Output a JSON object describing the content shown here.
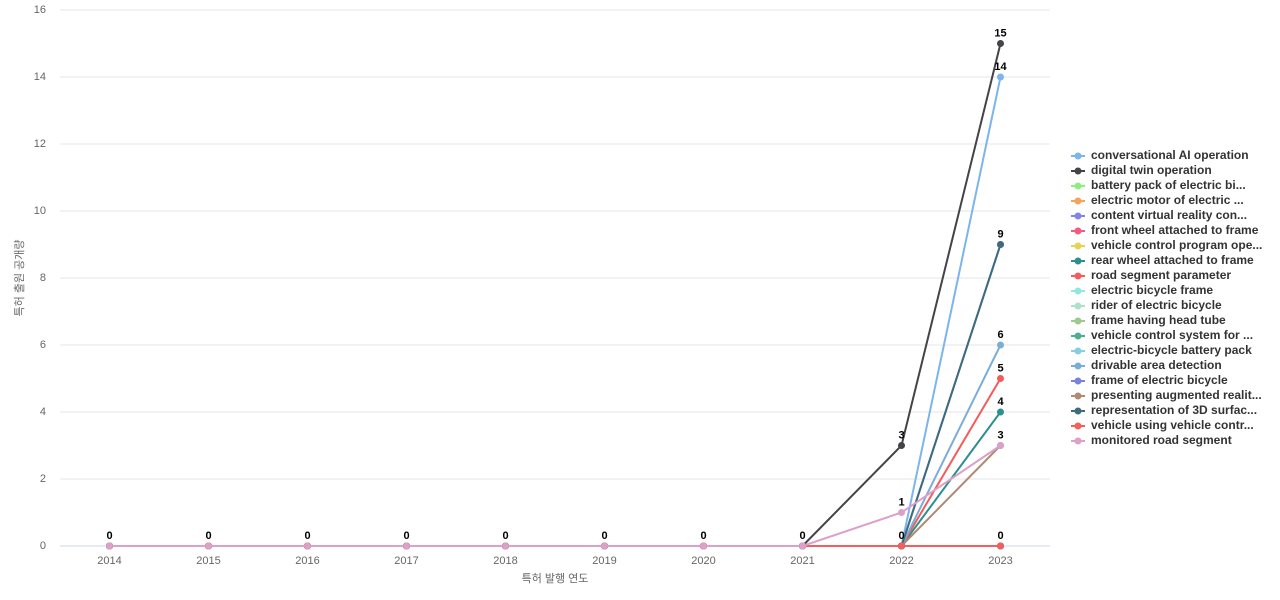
{
  "chart_data": {
    "type": "line",
    "x_label": "특허 발행 연도",
    "y_label": "특허 출원 공개량",
    "categories": [
      "2014",
      "2015",
      "2016",
      "2017",
      "2018",
      "2019",
      "2020",
      "2021",
      "2022",
      "2023"
    ],
    "ylim": [
      0,
      16
    ],
    "yticks": [
      0,
      2,
      4,
      6,
      8,
      10,
      12,
      14,
      16
    ],
    "grid": true,
    "series": [
      {
        "name": "conversational AI operation",
        "color": "#7cb5ec",
        "values": [
          0,
          0,
          0,
          0,
          0,
          0,
          0,
          0,
          0,
          14
        ]
      },
      {
        "name": "digital twin operation",
        "color": "#434348",
        "values": [
          0,
          0,
          0,
          0,
          0,
          0,
          0,
          0,
          3,
          15
        ]
      },
      {
        "name": "battery pack of electric bi...",
        "color": "#90ed7d",
        "values": [
          0,
          0,
          0,
          0,
          0,
          0,
          0,
          0,
          0,
          0
        ]
      },
      {
        "name": "electric motor of electric ...",
        "color": "#f7a35c",
        "values": [
          0,
          0,
          0,
          0,
          0,
          0,
          0,
          0,
          0,
          0
        ]
      },
      {
        "name": "content virtual reality con...",
        "color": "#8085e9",
        "values": [
          0,
          0,
          0,
          0,
          0,
          0,
          0,
          0,
          0,
          9
        ]
      },
      {
        "name": "front wheel attached to frame",
        "color": "#f15c80",
        "values": [
          0,
          0,
          0,
          0,
          0,
          0,
          0,
          0,
          0,
          0
        ]
      },
      {
        "name": "vehicle control program ope...",
        "color": "#e4d354",
        "values": [
          0,
          0,
          0,
          0,
          0,
          0,
          0,
          0,
          0,
          0
        ]
      },
      {
        "name": "rear wheel attached to frame",
        "color": "#2b908f",
        "values": [
          0,
          0,
          0,
          0,
          0,
          0,
          0,
          0,
          0,
          4
        ]
      },
      {
        "name": "road segment parameter",
        "color": "#f45b5b",
        "values": [
          0,
          0,
          0,
          0,
          0,
          0,
          0,
          0,
          0,
          5
        ]
      },
      {
        "name": "electric bicycle frame",
        "color": "#91e8e1",
        "values": [
          0,
          0,
          0,
          0,
          0,
          0,
          0,
          0,
          0,
          0
        ]
      },
      {
        "name": "rider of electric bicycle",
        "color": "#aee0cc",
        "values": [
          0,
          0,
          0,
          0,
          0,
          0,
          0,
          0,
          0,
          0
        ]
      },
      {
        "name": "frame having head tube",
        "color": "#9fc98e",
        "values": [
          0,
          0,
          0,
          0,
          0,
          0,
          0,
          0,
          0,
          0
        ]
      },
      {
        "name": "vehicle control system for ...",
        "color": "#4fae8f",
        "values": [
          0,
          0,
          0,
          0,
          0,
          0,
          0,
          0,
          0,
          0
        ]
      },
      {
        "name": "electric-bicycle battery pack",
        "color": "#86cfe0",
        "values": [
          0,
          0,
          0,
          0,
          0,
          0,
          0,
          0,
          0,
          0
        ]
      },
      {
        "name": "drivable area detection",
        "color": "#7aaed6",
        "values": [
          0,
          0,
          0,
          0,
          0,
          0,
          0,
          0,
          0,
          6
        ]
      },
      {
        "name": "frame of electric bicycle",
        "color": "#7b82d9",
        "values": [
          0,
          0,
          0,
          0,
          0,
          0,
          0,
          0,
          0,
          0
        ]
      },
      {
        "name": "presenting augmented realit...",
        "color": "#b08a72",
        "values": [
          0,
          0,
          0,
          0,
          0,
          0,
          0,
          0,
          0,
          3
        ]
      },
      {
        "name": "representation of 3D surfac...",
        "color": "#3e6b7e",
        "values": [
          0,
          0,
          0,
          0,
          0,
          0,
          0,
          0,
          0,
          9
        ]
      },
      {
        "name": "vehicle using vehicle contr...",
        "color": "#f25f5c",
        "values": [
          0,
          0,
          0,
          0,
          0,
          0,
          0,
          0,
          0,
          0
        ]
      },
      {
        "name": "monitored road segment",
        "color": "#dda0c8",
        "values": [
          0,
          0,
          0,
          0,
          0,
          0,
          0,
          0,
          1,
          3
        ]
      }
    ]
  }
}
